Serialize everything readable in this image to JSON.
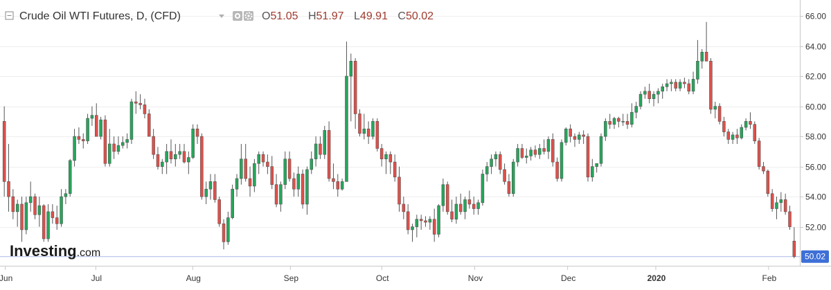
{
  "header": {
    "title": "Crude Oil WTI Futures, D, (CFD)",
    "open_label": "O",
    "open_value": "51.05",
    "high_label": "H",
    "high_value": "51.97",
    "low_label": "L",
    "low_value": "49.91",
    "close_label": "C",
    "close_value": "50.02"
  },
  "watermark": {
    "brand": "Investing",
    "suffix": ".com"
  },
  "last_price_label": "50.02",
  "colors": {
    "up": "#26a65b",
    "down": "#e0504a",
    "price_line": "#aab8e8",
    "tag_bg": "#3d6fd6",
    "text": "#333333"
  },
  "chart_data": {
    "type": "candlestick",
    "title": "Crude Oil WTI Futures, D, (CFD)",
    "ylim": [
      49.5,
      66.6
    ],
    "y_ticks": [
      "66.00",
      "64.00",
      "62.00",
      "60.00",
      "58.00",
      "56.00",
      "54.00",
      "52.00"
    ],
    "y_tick_values": [
      66,
      64,
      62,
      60,
      58,
      56,
      54,
      52
    ],
    "x_ticks": [
      "Jun",
      "Jul",
      "Aug",
      "Sep",
      "Oct",
      "Nov",
      "Dec",
      "2020",
      "Feb"
    ],
    "x_tick_bold": [
      false,
      false,
      false,
      false,
      false,
      false,
      false,
      true,
      false
    ],
    "last_price": 50.02,
    "candles": [
      [
        59,
        60,
        54,
        55
      ],
      [
        55,
        57.5,
        53,
        54
      ],
      [
        54,
        54.5,
        52.5,
        53
      ],
      [
        53,
        53.8,
        52,
        53.5
      ],
      [
        53.5,
        54,
        51,
        51.8
      ],
      [
        51.8,
        54,
        51.5,
        53.6
      ],
      [
        53.6,
        55,
        53,
        54
      ],
      [
        54,
        54.2,
        52.5,
        52.8
      ],
      [
        52.8,
        54,
        52,
        53.4
      ],
      [
        53.4,
        53.5,
        51,
        51.2
      ],
      [
        51.2,
        53.5,
        51,
        53
      ],
      [
        53,
        53.5,
        52.2,
        52.6
      ],
      [
        52.6,
        53.4,
        51.8,
        52.2
      ],
      [
        52.2,
        54.5,
        52,
        54
      ],
      [
        54,
        54.5,
        53.5,
        54.2
      ],
      [
        54.2,
        56.5,
        54,
        56.4
      ],
      [
        56.4,
        58.5,
        56,
        58
      ],
      [
        58,
        58.6,
        57.5,
        57.8
      ],
      [
        57.8,
        58.2,
        57.2,
        57.7
      ],
      [
        57.7,
        59.5,
        57.5,
        59.2
      ],
      [
        59.2,
        60,
        58.7,
        59.4
      ],
      [
        59.4,
        60.2,
        58,
        58
      ],
      [
        58,
        59.3,
        57.8,
        59.1
      ],
      [
        59.1,
        59.4,
        56,
        56.2
      ],
      [
        56.2,
        58.5,
        56,
        57.5
      ],
      [
        57.5,
        58,
        56.5,
        57
      ],
      [
        57,
        58,
        56.8,
        57.4
      ],
      [
        57.4,
        58,
        57.2,
        57.6
      ],
      [
        57.6,
        58.2,
        57.2,
        57.8
      ],
      [
        57.8,
        60.5,
        57.5,
        60.3
      ],
      [
        60.3,
        61,
        59.5,
        60.2
      ],
      [
        60.2,
        60.8,
        59.8,
        60.1
      ],
      [
        60.1,
        60.5,
        59.2,
        59.5
      ],
      [
        59.5,
        59.8,
        58,
        58
      ],
      [
        58,
        58.5,
        56.5,
        56.8
      ],
      [
        56.8,
        57.3,
        55.8,
        56
      ],
      [
        56,
        56.5,
        55.5,
        56.3
      ],
      [
        56.3,
        57.5,
        55.5,
        57
      ],
      [
        57,
        57.8,
        56.2,
        56.5
      ],
      [
        56.5,
        57.5,
        56,
        56.8
      ],
      [
        56.8,
        57.5,
        56.5,
        57
      ],
      [
        57,
        57.5,
        56.2,
        56.3
      ],
      [
        56.3,
        57,
        55.5,
        56.6
      ],
      [
        56.6,
        58.8,
        56.5,
        58.5
      ],
      [
        58.5,
        58.8,
        57.5,
        58
      ],
      [
        58,
        58.2,
        53.8,
        54
      ],
      [
        54,
        55,
        53.5,
        54.5
      ],
      [
        54.5,
        55.5,
        53.8,
        55
      ],
      [
        55,
        55.5,
        53.6,
        53.8
      ],
      [
        53.8,
        54,
        52,
        52.2
      ],
      [
        52.2,
        52.5,
        50.5,
        51
      ],
      [
        51,
        53,
        50.8,
        52.6
      ],
      [
        52.6,
        54.8,
        52.5,
        54.5
      ],
      [
        54.5,
        55.5,
        54,
        55.2
      ],
      [
        55.2,
        57.5,
        54.8,
        56.5
      ],
      [
        56.5,
        57.5,
        55,
        55.2
      ],
      [
        55.2,
        56,
        54,
        54.7
      ],
      [
        54.7,
        56.5,
        54.3,
        56.2
      ],
      [
        56.2,
        57,
        55.5,
        56.8
      ],
      [
        56.8,
        57,
        56,
        56.3
      ],
      [
        56.3,
        56.8,
        55.5,
        56
      ],
      [
        56,
        56.7,
        54.5,
        54.8
      ],
      [
        54.8,
        55.5,
        53.3,
        53.5
      ],
      [
        53.5,
        55,
        53,
        54.8
      ],
      [
        54.8,
        57,
        54.5,
        56.5
      ],
      [
        56.5,
        57,
        55,
        55.2
      ],
      [
        55.2,
        55.6,
        54,
        54.5
      ],
      [
        54.5,
        56,
        54,
        55.5
      ],
      [
        55.5,
        55.8,
        53.2,
        53.5
      ],
      [
        53.5,
        56,
        52.8,
        55.8
      ],
      [
        55.8,
        57,
        55.5,
        56.5
      ],
      [
        56.5,
        58,
        56,
        57.5
      ],
      [
        57.5,
        58,
        56.5,
        56.8
      ],
      [
        56.8,
        58.7,
        56.5,
        58.4
      ],
      [
        58.4,
        59,
        55,
        55.2
      ],
      [
        55.2,
        56.2,
        54.5,
        55
      ],
      [
        55,
        55.5,
        54,
        54.5
      ],
      [
        54.5,
        55.2,
        54.4,
        55
      ],
      [
        55,
        64.3,
        55,
        62
      ],
      [
        62,
        63.5,
        59,
        63
      ],
      [
        63,
        63.2,
        58.5,
        59.5
      ],
      [
        59.5,
        59.8,
        58,
        58.2
      ],
      [
        58.2,
        59.5,
        57.8,
        58.5
      ],
      [
        58.5,
        59,
        57.5,
        58
      ],
      [
        58,
        59.2,
        57.8,
        59
      ],
      [
        59,
        59.2,
        57,
        57.2
      ],
      [
        57.2,
        57.5,
        56,
        56.5
      ],
      [
        56.5,
        57,
        55.5,
        56.8
      ],
      [
        56.8,
        57,
        55.5,
        56.3
      ],
      [
        56.3,
        56.8,
        55,
        55.3
      ],
      [
        55.3,
        56,
        53,
        53.5
      ],
      [
        53.5,
        54,
        52.5,
        53
      ],
      [
        53,
        53.5,
        51.5,
        51.8
      ],
      [
        51.8,
        52.2,
        51,
        52
      ],
      [
        52,
        52.8,
        51.3,
        52.5
      ],
      [
        52.5,
        52.8,
        51.8,
        52.4
      ],
      [
        52.4,
        52.7,
        52,
        52.3
      ],
      [
        52.3,
        52.7,
        51.8,
        52.5
      ],
      [
        52.5,
        53.2,
        51,
        51.5
      ],
      [
        51.5,
        53.5,
        51.3,
        53.4
      ],
      [
        53.4,
        55.2,
        53,
        54.8
      ],
      [
        54.8,
        55,
        52.8,
        53
      ],
      [
        53,
        53.8,
        52.3,
        52.5
      ],
      [
        52.5,
        54,
        52.2,
        53.5
      ],
      [
        53.5,
        54.2,
        52.8,
        53
      ],
      [
        53,
        54,
        52.5,
        53.8
      ],
      [
        53.8,
        54.4,
        53.2,
        53.5
      ],
      [
        53.5,
        54,
        52.8,
        53.2
      ],
      [
        53.2,
        53.8,
        52.8,
        53.6
      ],
      [
        53.6,
        55.8,
        53.4,
        55.5
      ],
      [
        55.5,
        56.3,
        55,
        56
      ],
      [
        56,
        56.8,
        55.5,
        56.5
      ],
      [
        56.5,
        57,
        56,
        56.8
      ],
      [
        56.8,
        57,
        55.5,
        55.8
      ],
      [
        55.8,
        56.2,
        54.8,
        55
      ],
      [
        55,
        55.5,
        54,
        54.2
      ],
      [
        54.2,
        56.5,
        54,
        56.3
      ],
      [
        56.3,
        57.5,
        56,
        57.2
      ],
      [
        57.2,
        57.5,
        56.5,
        56.6
      ],
      [
        56.6,
        57.2,
        56.2,
        56.7
      ],
      [
        56.7,
        57.3,
        56.4,
        57.1
      ],
      [
        57.1,
        57.4,
        56.6,
        56.8
      ],
      [
        56.8,
        57.5,
        56.5,
        57.2
      ],
      [
        57.2,
        57.8,
        56.8,
        57
      ],
      [
        57,
        58,
        56.5,
        57.8
      ],
      [
        57.8,
        58.2,
        56,
        56.3
      ],
      [
        56.3,
        56.6,
        55,
        55.2
      ],
      [
        55.2,
        57.8,
        55,
        57.6
      ],
      [
        57.6,
        58.6,
        57.4,
        58.5
      ],
      [
        58.5,
        58.8,
        57.6,
        58
      ],
      [
        58,
        58.2,
        57.3,
        57.8
      ],
      [
        57.8,
        58.3,
        57.5,
        58.1
      ],
      [
        58.1,
        58.4,
        57.5,
        58
      ],
      [
        58,
        58.2,
        55,
        55.3
      ],
      [
        55.3,
        56.5,
        55,
        56
      ],
      [
        56,
        56.2,
        55.6,
        56.2
      ],
      [
        56.2,
        58.2,
        56,
        58
      ],
      [
        58,
        59.2,
        57.7,
        59
      ],
      [
        59,
        59.5,
        58.5,
        58.8
      ],
      [
        58.8,
        59.3,
        58.5,
        59.2
      ],
      [
        59.2,
        59.3,
        58.6,
        59
      ],
      [
        59,
        59.5,
        58.7,
        59
      ],
      [
        59,
        59.5,
        58.5,
        58.8
      ],
      [
        58.8,
        60.2,
        58.6,
        59.6
      ],
      [
        59.6,
        60.3,
        59.2,
        60
      ],
      [
        60,
        61,
        59.8,
        60.8
      ],
      [
        60.8,
        61.3,
        60.5,
        61
      ],
      [
        61,
        61.5,
        60.2,
        60.5
      ],
      [
        60.5,
        61,
        60,
        60.8
      ],
      [
        60.8,
        61.2,
        60.2,
        61
      ],
      [
        61,
        61.5,
        60.5,
        61.3
      ],
      [
        61.3,
        61.8,
        61,
        61.5
      ],
      [
        61.5,
        61.8,
        61,
        61.6
      ],
      [
        61.6,
        61.8,
        61,
        61.2
      ],
      [
        61.2,
        61.8,
        61,
        61.6
      ],
      [
        61.6,
        61.9,
        61.2,
        61.5
      ],
      [
        61.5,
        61.8,
        60.8,
        61
      ],
      [
        61,
        62.3,
        60.8,
        61.8
      ],
      [
        61.8,
        64.4,
        61.5,
        63
      ],
      [
        63,
        63.8,
        62.5,
        63.6
      ],
      [
        63.6,
        65.6,
        63,
        63
      ],
      [
        63,
        63.2,
        59.5,
        59.8
      ],
      [
        59.8,
        60.3,
        59.2,
        60
      ],
      [
        60,
        60.2,
        58.8,
        59
      ],
      [
        59,
        59.3,
        58,
        58.3
      ],
      [
        58.3,
        58.5,
        57.5,
        57.8
      ],
      [
        57.8,
        58.3,
        57.5,
        58.1
      ],
      [
        58.1,
        58.5,
        57.5,
        57.9
      ],
      [
        57.9,
        58.8,
        57.8,
        58.6
      ],
      [
        58.6,
        59.2,
        58.4,
        59
      ],
      [
        59,
        59.6,
        58.5,
        58.8
      ],
      [
        58.8,
        59,
        57.5,
        57.7
      ],
      [
        57.7,
        57.9,
        55.8,
        56
      ],
      [
        56,
        56.3,
        55.5,
        55.7
      ],
      [
        55.7,
        55.8,
        54,
        54.2
      ],
      [
        54.2,
        54.5,
        53,
        53.2
      ],
      [
        53.2,
        54,
        52.5,
        53.6
      ],
      [
        53.6,
        54.3,
        53,
        53.8
      ],
      [
        53.8,
        54.2,
        52.8,
        53
      ],
      [
        53,
        53.4,
        51.8,
        52
      ],
      [
        51.05,
        51.97,
        49.91,
        50.02
      ]
    ]
  }
}
